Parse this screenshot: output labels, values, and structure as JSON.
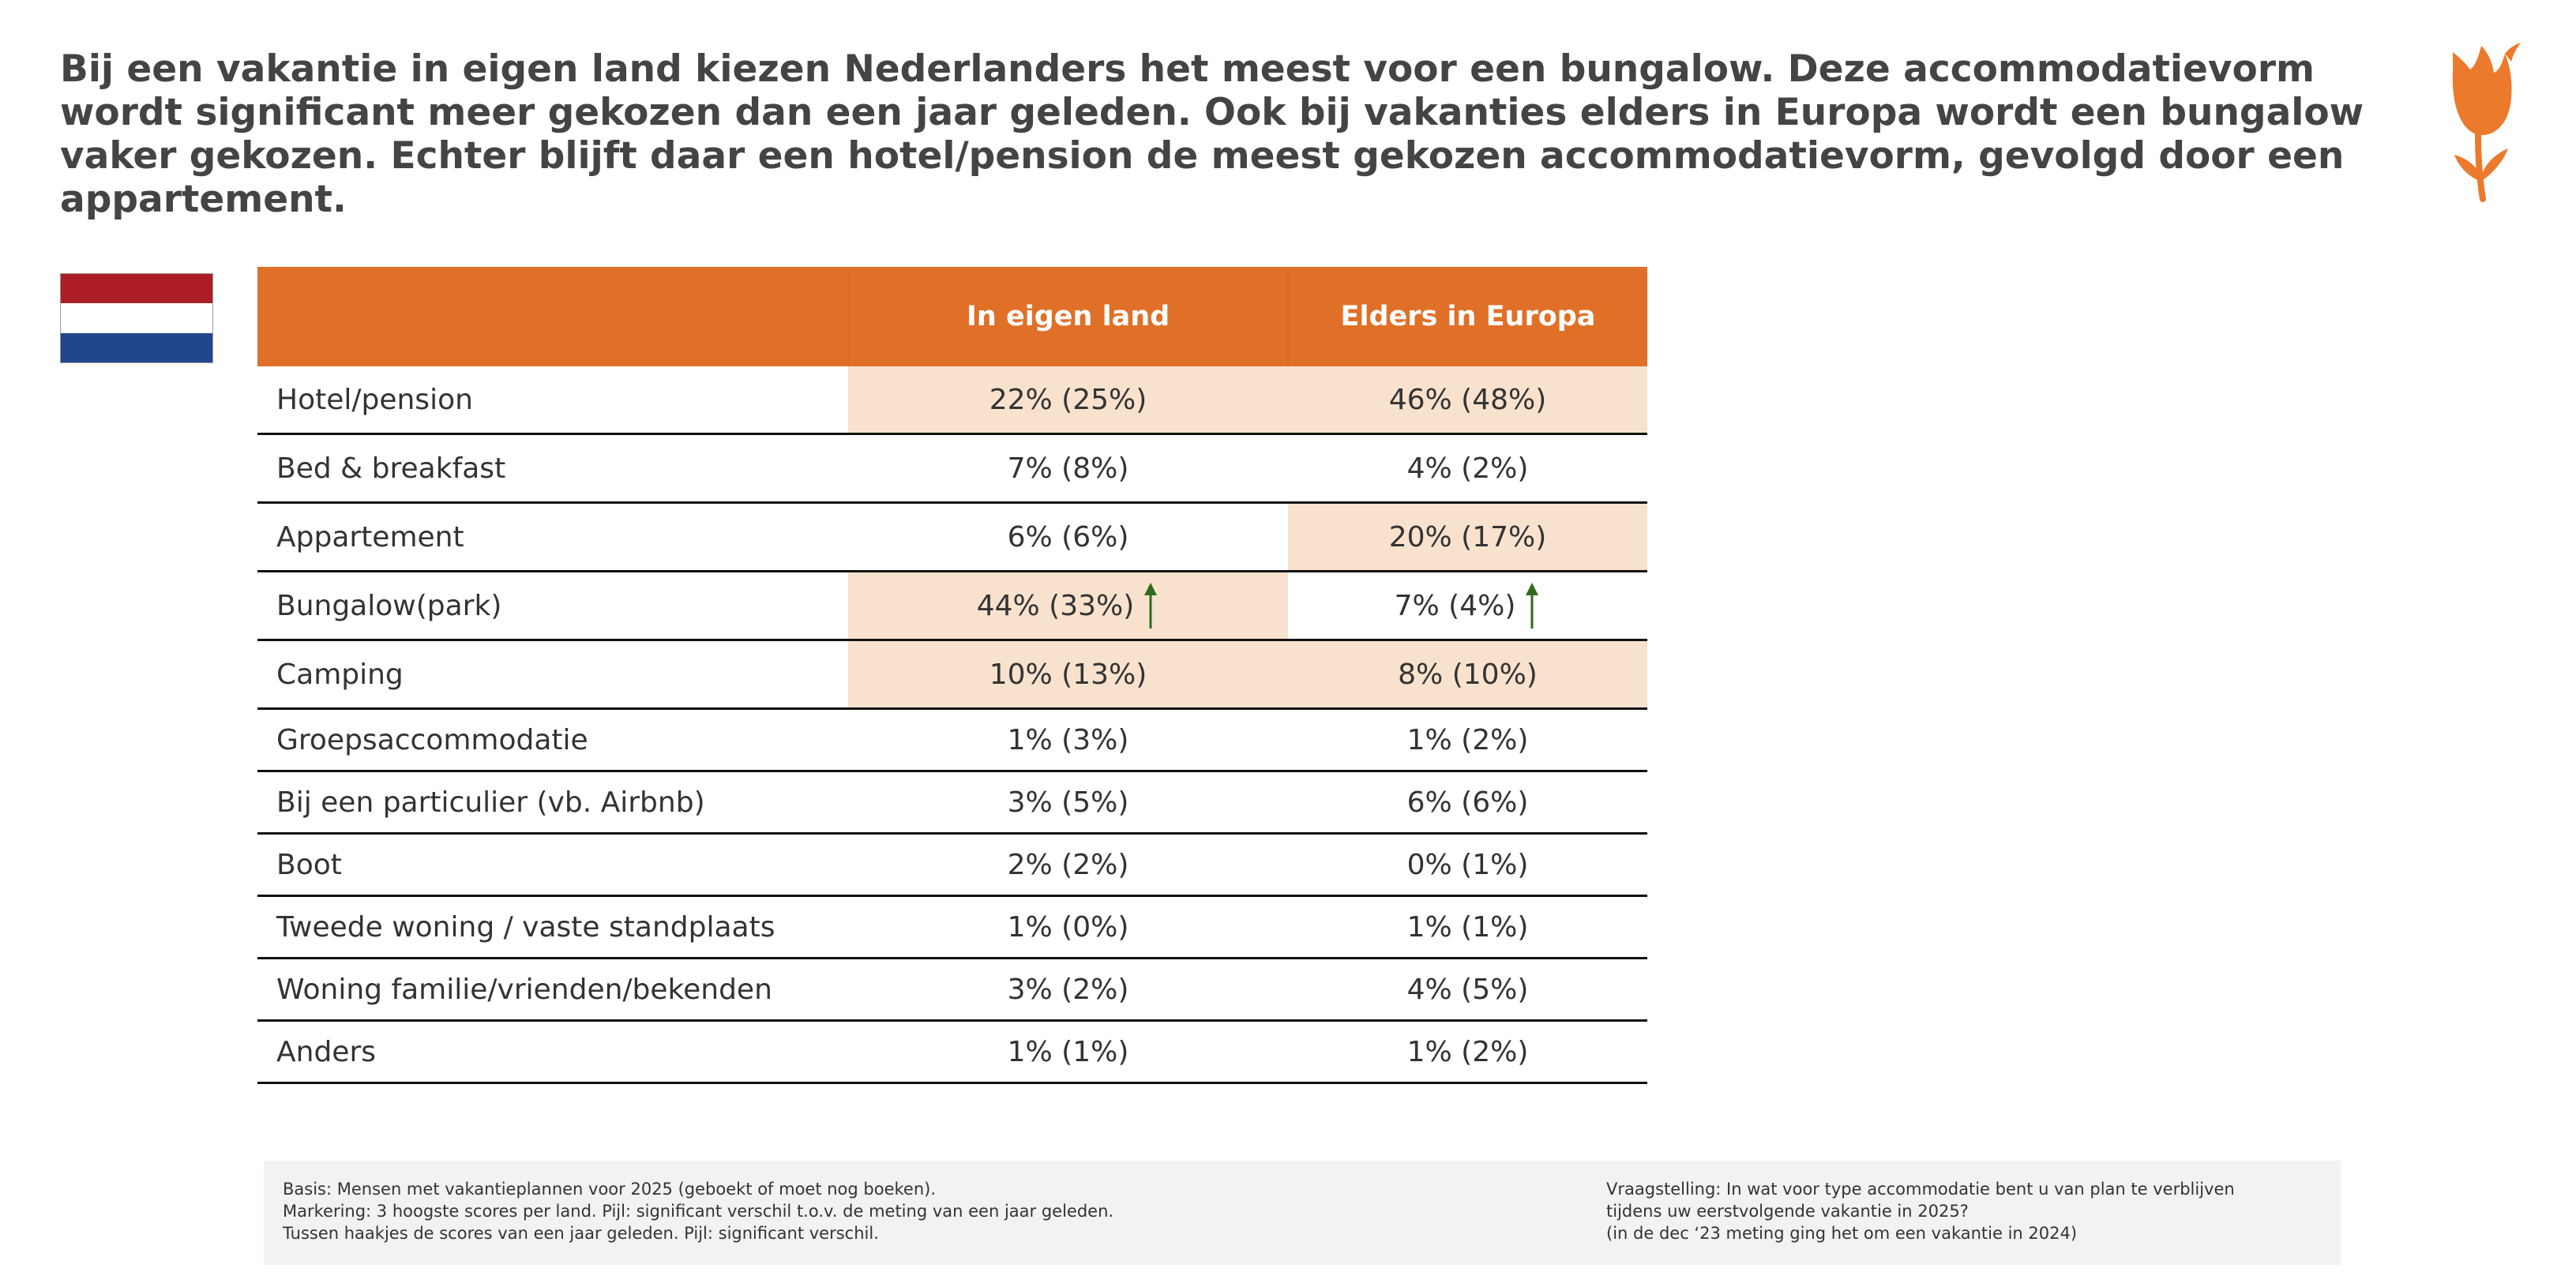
{
  "headline": "Bij een vakantie in eigen land kiezen Nederlanders het meest voor een bungalow. Deze accommodatievorm wordt significant meer gekozen dan een jaar geleden. Ook bij vakanties elders in Europa wordt een bungalow vaker gekozen. Echter blijft daar een hotel/pension de meest gekozen accommodatievorm, gevolgd door een appartement.",
  "logo_icon": "tulip-icon",
  "flag_icon": "netherlands-flag-icon",
  "colors": {
    "header_bg": "#e07027",
    "highlight": "#f8e2ce",
    "arrow": "#2e6b1f",
    "flag_red": "#ad1d25",
    "flag_blue": "#21468b"
  },
  "table": {
    "columns": [
      "",
      "In eigen land",
      "Elders in Europa"
    ],
    "rows": [
      {
        "label": "Hotel/pension",
        "nl": "22% (25%)",
        "eu": "46% (48%)",
        "nl_highlight": true,
        "eu_highlight": true,
        "nl_arrow": false,
        "eu_arrow": false
      },
      {
        "label": "Bed & breakfast",
        "nl": "7% (8%)",
        "eu": "4% (2%)",
        "nl_highlight": false,
        "eu_highlight": false,
        "nl_arrow": false,
        "eu_arrow": false
      },
      {
        "label": "Appartement",
        "nl": "6% (6%)",
        "eu": "20% (17%)",
        "nl_highlight": false,
        "eu_highlight": true,
        "nl_arrow": false,
        "eu_arrow": false
      },
      {
        "label": "Bungalow(park)",
        "nl": "44% (33%)",
        "eu": "7% (4%)",
        "nl_highlight": true,
        "eu_highlight": false,
        "nl_arrow": true,
        "eu_arrow": true
      },
      {
        "label": "Camping",
        "nl": "10% (13%)",
        "eu": "8% (10%)",
        "nl_highlight": true,
        "eu_highlight": true,
        "nl_arrow": false,
        "eu_arrow": false
      },
      {
        "label": "Groepsaccommodatie",
        "nl": "1% (3%)",
        "eu": "1% (2%)",
        "nl_highlight": false,
        "eu_highlight": false,
        "nl_arrow": false,
        "eu_arrow": false
      },
      {
        "label": "Bij een particulier (vb. Airbnb)",
        "nl": "3% (5%)",
        "eu": "6% (6%)",
        "nl_highlight": false,
        "eu_highlight": false,
        "nl_arrow": false,
        "eu_arrow": false
      },
      {
        "label": "Boot",
        "nl": "2% (2%)",
        "eu": "0% (1%)",
        "nl_highlight": false,
        "eu_highlight": false,
        "nl_arrow": false,
        "eu_arrow": false
      },
      {
        "label": "Tweede woning / vaste standplaats",
        "nl": "1% (0%)",
        "eu": "1% (1%)",
        "nl_highlight": false,
        "eu_highlight": false,
        "nl_arrow": false,
        "eu_arrow": false
      },
      {
        "label": "Woning familie/vrienden/bekenden",
        "nl": "3% (2%)",
        "eu": "4% (5%)",
        "nl_highlight": false,
        "eu_highlight": false,
        "nl_arrow": false,
        "eu_arrow": false
      },
      {
        "label": "Anders",
        "nl": "1% (1%)",
        "eu": "1% (2%)",
        "nl_highlight": false,
        "eu_highlight": false,
        "nl_arrow": false,
        "eu_arrow": false
      }
    ]
  },
  "footer": {
    "left_lines": [
      "Basis: Mensen met vakantieplannen voor 2025 (geboekt of moet nog boeken).",
      "Markering: 3 hoogste scores per land. Pijl: significant verschil t.o.v. de meting van een jaar geleden.",
      "Tussen haakjes de scores van een jaar geleden. Pijl: significant verschil."
    ],
    "right_lines": [
      "Vraagstelling: In wat voor type accommodatie bent u van plan te verblijven",
      "tijdens uw eerstvolgende vakantie in 2025?",
      "(in de dec ‘23 meting ging het om een vakantie in 2024)"
    ]
  }
}
